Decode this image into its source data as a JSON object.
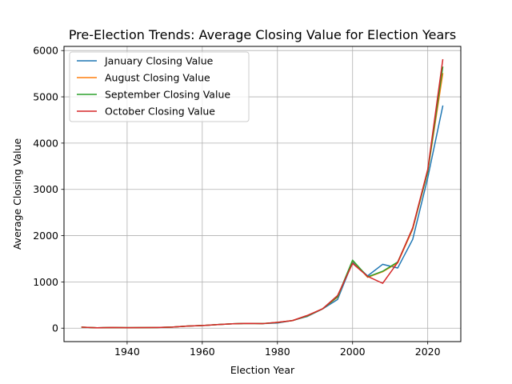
{
  "chart_data": {
    "type": "line",
    "title": "Pre-Election Trends: Average Closing Value for Election Years",
    "xlabel": "Election Year",
    "ylabel": "Average Closing Value",
    "xlim": [
      1923.2,
      2028.8
    ],
    "ylim": [
      -290,
      6090
    ],
    "xticks": [
      1940,
      1960,
      1980,
      2000,
      2020
    ],
    "yticks": [
      0,
      1000,
      2000,
      3000,
      4000,
      5000,
      6000
    ],
    "grid": true,
    "legend_position": "top-left",
    "x": [
      1928,
      1932,
      1936,
      1940,
      1944,
      1948,
      1952,
      1956,
      1960,
      1964,
      1968,
      1972,
      1976,
      1980,
      1984,
      1988,
      1992,
      1996,
      2000,
      2004,
      2008,
      2012,
      2016,
      2020,
      2024
    ],
    "series": [
      {
        "name": "January Closing Value",
        "color": "#1f77b4",
        "values": [
          22,
          8,
          14,
          11,
          12,
          15,
          24,
          44,
          57,
          77,
          95,
          103,
          98,
          112,
          165,
          255,
          415,
          620,
          1430,
          1130,
          1380,
          1300,
          1920,
          3250,
          4800
        ]
      },
      {
        "name": "August Closing Value",
        "color": "#ff7f0e",
        "values": [
          22,
          8,
          14,
          11,
          12,
          15,
          24,
          44,
          57,
          77,
          95,
          103,
          98,
          122,
          165,
          265,
          420,
          670,
          1460,
          1100,
          1220,
          1410,
          2140,
          3380,
          5500
        ]
      },
      {
        "name": "September Closing Value",
        "color": "#2ca02c",
        "values": [
          22,
          8,
          14,
          11,
          12,
          15,
          24,
          44,
          57,
          77,
          95,
          103,
          98,
          124,
          164,
          268,
          418,
          680,
          1470,
          1110,
          1230,
          1430,
          2160,
          3380,
          5640
        ]
      },
      {
        "name": "October Closing Value",
        "color": "#d62728",
        "values": [
          22,
          8,
          14,
          11,
          12,
          15,
          24,
          44,
          57,
          77,
          95,
          103,
          98,
          127,
          164,
          278,
          418,
          705,
          1400,
          1120,
          970,
          1420,
          2170,
          3430,
          5800
        ]
      }
    ]
  }
}
